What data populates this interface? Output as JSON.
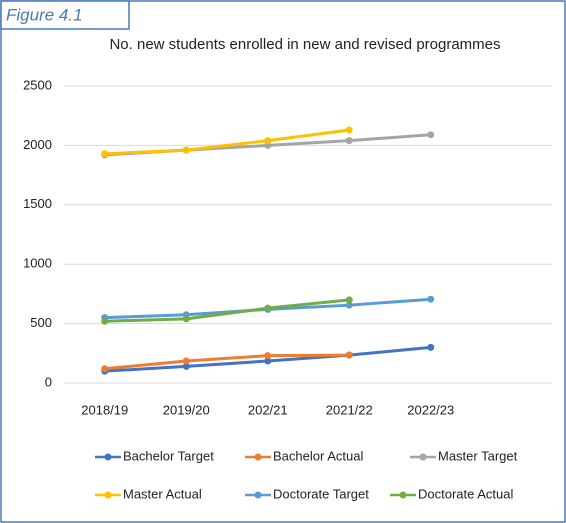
{
  "figure_label": "Figure 4.1",
  "chart_data": {
    "type": "line",
    "title": "No. new students enrolled in new and revised programmes",
    "categories": [
      "2018/19",
      "2019/20",
      "202/21",
      "2021/22",
      "2022/23"
    ],
    "series": [
      {
        "name": "Bachelor Target",
        "color": "#4472c4",
        "values": [
          100,
          140,
          185,
          235,
          300
        ]
      },
      {
        "name": "Bachelor Actual",
        "color": "#ed7d31",
        "values": [
          120,
          185,
          230,
          235,
          null
        ]
      },
      {
        "name": "Master Target",
        "color": "#a5a5a5",
        "values": [
          1920,
          1960,
          2000,
          2040,
          2090
        ]
      },
      {
        "name": "Master Actual",
        "color": "#ffc000",
        "values": [
          1930,
          1960,
          2040,
          2130,
          null
        ]
      },
      {
        "name": "Doctorate Target",
        "color": "#5b9bd5",
        "values": [
          550,
          575,
          620,
          655,
          705
        ]
      },
      {
        "name": "Doctorate Actual",
        "color": "#70ad47",
        "values": [
          520,
          540,
          630,
          700,
          null
        ]
      }
    ],
    "ylim": [
      0,
      2500
    ],
    "yticks": [
      0,
      500,
      1000,
      1500,
      2000,
      2500
    ],
    "grid": true,
    "legend": "bottom"
  }
}
